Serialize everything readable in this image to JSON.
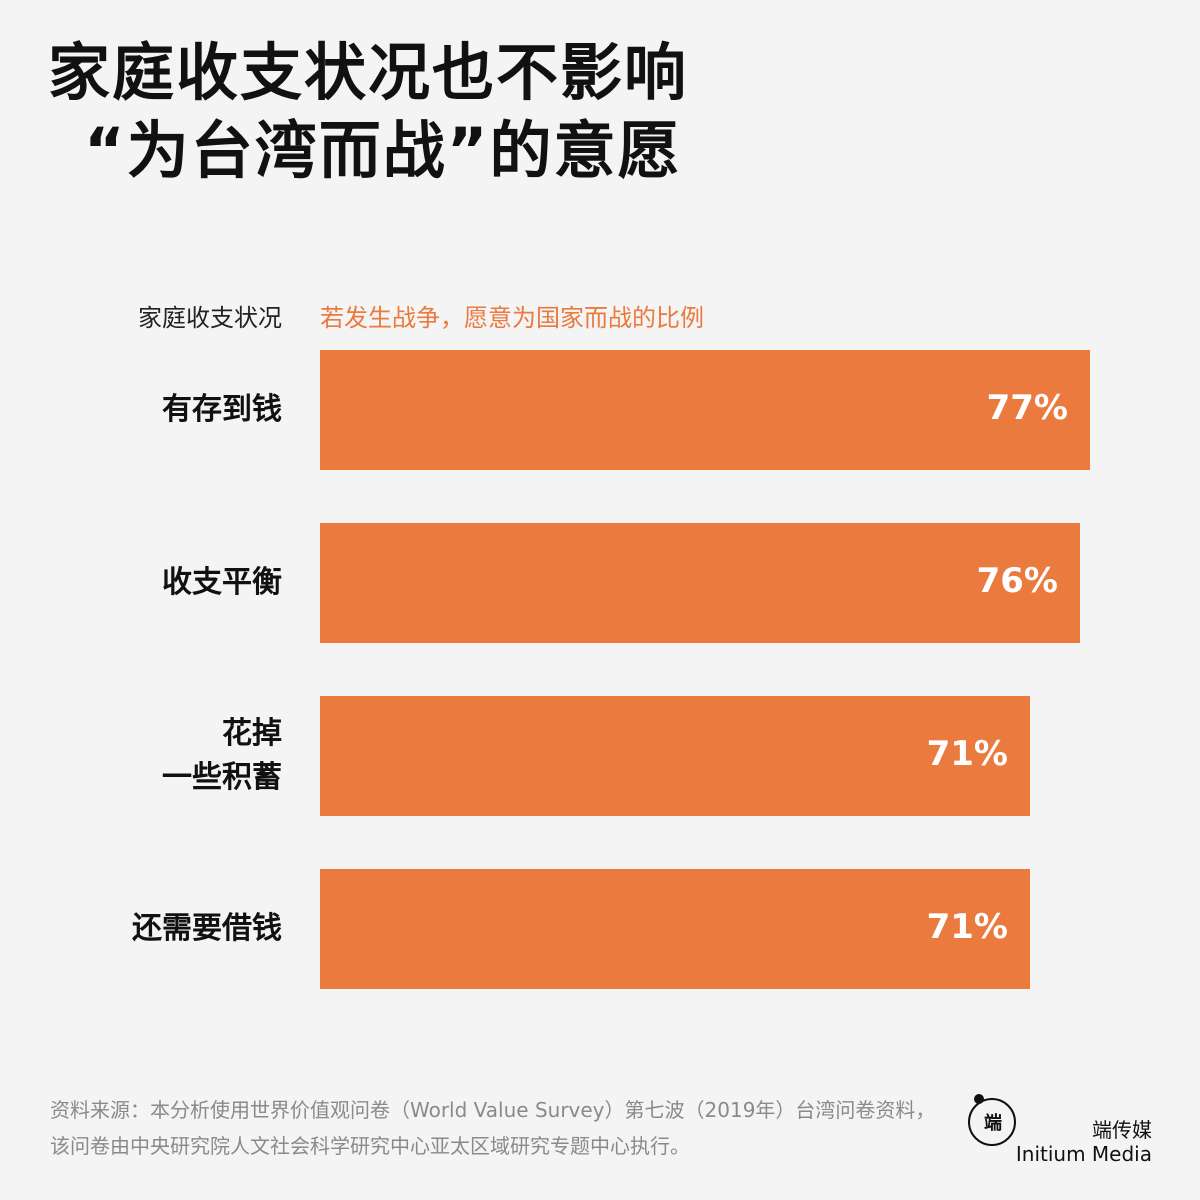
{
  "title_line1": "家庭收支状况也不影响",
  "title_line2": "“为台湾而战”的意愿",
  "header_left": "家庭收支状况",
  "header_right": "若发生战争，愿意为国家而战的比例",
  "colors": {
    "bar": "#ea7a3e",
    "accent_text": "#ea7a3e",
    "background": "#f4f4f4"
  },
  "chart_data": {
    "type": "bar",
    "orientation": "horizontal",
    "categories": [
      "有存到钱",
      "收支平衡",
      "花掉\n一些积蓄",
      "还需要借钱"
    ],
    "values": [
      77,
      76,
      71,
      71
    ],
    "value_labels": [
      "77%",
      "76%",
      "71%",
      "71%"
    ],
    "xlim": [
      0,
      100
    ],
    "grid": false,
    "legend": "none"
  },
  "source": "资料来源：本分析使用世界价值观问卷（World Value Survey）第七波（2019年）台湾问卷资料，该问卷由中央研究院人文社会科学研究中心亚太区域研究专题中心执行。",
  "brand": {
    "logo_icon": "initium-logo-icon",
    "logo_glyph": "端",
    "name_cn": "端传媒",
    "name_en": "Initium Media"
  }
}
